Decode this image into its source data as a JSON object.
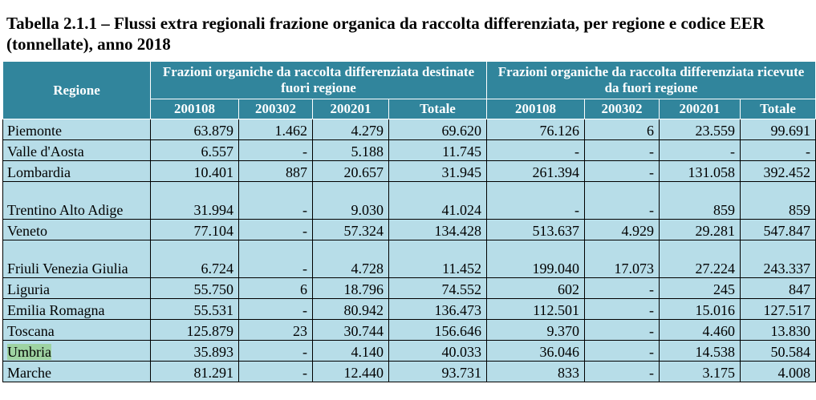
{
  "title": "Tabella 2.1.1 – Flussi extra regionali frazione organica da raccolta differenziata, per regione e codice EER (tonnellate), anno 2018",
  "table": {
    "region_header": "Regione",
    "group_outgoing": "Frazioni organiche da raccolta differenziata destinate fuori regione",
    "group_incoming": "Frazioni organiche da raccolta differenziata ricevute da fuori regione",
    "sub_headers": [
      "200108",
      "200302",
      "200201",
      "Totale",
      "200108",
      "200302",
      "200201",
      "Totale"
    ],
    "rows": [
      {
        "name": "Piemonte",
        "values": [
          "63.879",
          "1.462",
          "4.279",
          "69.620",
          "76.126",
          "6",
          "23.559",
          "99.691"
        ]
      },
      {
        "name": "Valle d'Aosta",
        "values": [
          "6.557",
          "-",
          "5.188",
          "11.745",
          "-",
          "-",
          "-",
          "-"
        ]
      },
      {
        "name": "Lombardia",
        "values": [
          "10.401",
          "887",
          "20.657",
          "31.945",
          "261.394",
          "-",
          "131.058",
          "392.452"
        ]
      },
      {
        "name": "Trentino Alto Adige",
        "values": [
          "31.994",
          "-",
          "9.030",
          "41.024",
          "-",
          "-",
          "859",
          "859"
        ]
      },
      {
        "name": "Veneto",
        "values": [
          "77.104",
          "-",
          "57.324",
          "134.428",
          "513.637",
          "4.929",
          "29.281",
          "547.847"
        ]
      },
      {
        "name": "Friuli Venezia Giulia",
        "values": [
          "6.724",
          "-",
          "4.728",
          "11.452",
          "199.040",
          "17.073",
          "27.224",
          "243.337"
        ]
      },
      {
        "name": "Liguria",
        "values": [
          "55.750",
          "6",
          "18.796",
          "74.552",
          "602",
          "-",
          "245",
          "847"
        ]
      },
      {
        "name": "Emilia Romagna",
        "values": [
          "55.531",
          "-",
          "80.942",
          "136.473",
          "112.501",
          "-",
          "15.016",
          "127.517"
        ]
      },
      {
        "name": "Toscana",
        "values": [
          "125.879",
          "23",
          "30.744",
          "156.646",
          "9.370",
          "-",
          "4.460",
          "13.830"
        ]
      },
      {
        "name": "Umbria",
        "values": [
          "35.893",
          "-",
          "4.140",
          "40.033",
          "36.046",
          "-",
          "14.538",
          "50.584"
        ]
      },
      {
        "name": "Marche",
        "values": [
          "81.291",
          "-",
          "12.440",
          "93.731",
          "833",
          "-",
          "3.175",
          "4.008"
        ]
      }
    ]
  }
}
